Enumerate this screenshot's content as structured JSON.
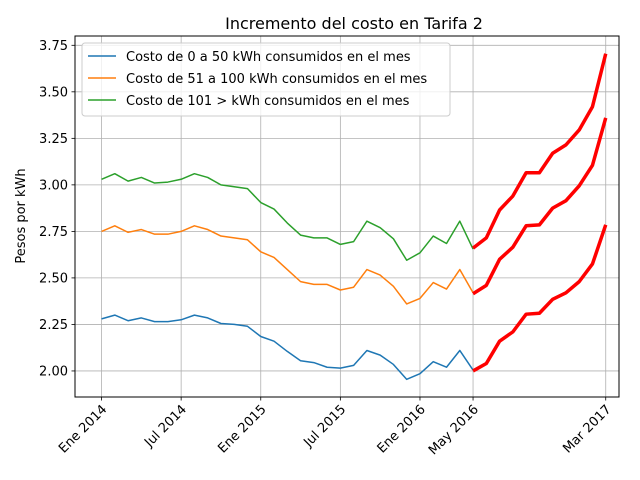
{
  "chart_data": {
    "type": "line",
    "title": "Incremento del costo en Tarifa 2",
    "xlabel": "",
    "ylabel": "Pesos por kWh",
    "ylim": [
      1.86,
      3.8
    ],
    "xlim": [
      "2013-11",
      "2017-04"
    ],
    "grid": true,
    "legend_position": "upper-left",
    "x_ticks": [
      {
        "date": "2014-01",
        "label": "Ene 2014"
      },
      {
        "date": "2014-07",
        "label": "Jul 2014"
      },
      {
        "date": "2015-01",
        "label": "Ene 2015"
      },
      {
        "date": "2015-07",
        "label": "Jul 2015"
      },
      {
        "date": "2016-01",
        "label": "Ene 2016"
      },
      {
        "date": "2016-05",
        "label": "May 2016"
      },
      {
        "date": "2017-03",
        "label": "Mar 2017"
      }
    ],
    "y_ticks": [
      {
        "value": 2.0,
        "label": "2.00"
      },
      {
        "value": 2.25,
        "label": "2.25"
      },
      {
        "value": 2.5,
        "label": "2.50"
      },
      {
        "value": 2.75,
        "label": "2.75"
      },
      {
        "value": 3.0,
        "label": "3.00"
      },
      {
        "value": 3.25,
        "label": "3.25"
      },
      {
        "value": 3.5,
        "label": "3.50"
      },
      {
        "value": 3.75,
        "label": "3.75"
      }
    ],
    "x": [
      "2014-01",
      "2014-02",
      "2014-03",
      "2014-04",
      "2014-05",
      "2014-06",
      "2014-07",
      "2014-08",
      "2014-09",
      "2014-10",
      "2014-11",
      "2014-12",
      "2015-01",
      "2015-02",
      "2015-03",
      "2015-04",
      "2015-05",
      "2015-06",
      "2015-07",
      "2015-08",
      "2015-09",
      "2015-10",
      "2015-11",
      "2015-12",
      "2016-01",
      "2016-02",
      "2016-03",
      "2016-04",
      "2016-05"
    ],
    "series": [
      {
        "name": "Costo de 0 a 50 kWh consumidos en el mes",
        "color": "#1f77b4",
        "values": [
          2.28,
          2.3,
          2.27,
          2.285,
          2.265,
          2.265,
          2.275,
          2.3,
          2.285,
          2.255,
          2.25,
          2.24,
          2.185,
          2.16,
          2.105,
          2.055,
          2.045,
          2.02,
          2.015,
          2.03,
          2.11,
          2.085,
          2.035,
          1.955,
          1.985,
          2.05,
          2.02,
          2.11,
          2.005
        ]
      },
      {
        "name": "Costo de 51 a 100 kWh consumidos en el mes",
        "color": "#ff7f0e",
        "values": [
          2.75,
          2.78,
          2.745,
          2.76,
          2.735,
          2.735,
          2.75,
          2.78,
          2.76,
          2.725,
          2.715,
          2.705,
          2.64,
          2.61,
          2.545,
          2.48,
          2.465,
          2.465,
          2.435,
          2.45,
          2.545,
          2.515,
          2.455,
          2.36,
          2.39,
          2.475,
          2.44,
          2.545,
          2.42
        ]
      },
      {
        "name": "Costo de 101 > kWh consumidos en el mes",
        "color": "#2ca02c",
        "values": [
          3.03,
          3.06,
          3.02,
          3.04,
          3.01,
          3.015,
          3.03,
          3.06,
          3.04,
          3.0,
          2.99,
          2.98,
          2.905,
          2.87,
          2.795,
          2.73,
          2.715,
          2.715,
          2.68,
          2.695,
          2.805,
          2.77,
          2.71,
          2.595,
          2.635,
          2.725,
          2.685,
          2.805,
          2.655
        ]
      }
    ],
    "projection": {
      "color": "#ff0000",
      "x": [
        "2016-05",
        "2016-06",
        "2016-07",
        "2016-08",
        "2016-09",
        "2016-10",
        "2016-11",
        "2016-12",
        "2017-01",
        "2017-02",
        "2017-03"
      ],
      "series": [
        {
          "values": [
            2.0,
            2.04,
            2.16,
            2.21,
            2.305,
            2.31,
            2.385,
            2.42,
            2.48,
            2.575,
            2.785
          ]
        },
        {
          "values": [
            2.415,
            2.46,
            2.6,
            2.665,
            2.78,
            2.785,
            2.875,
            2.915,
            2.995,
            3.105,
            3.36
          ]
        },
        {
          "values": [
            2.66,
            2.715,
            2.865,
            2.94,
            3.065,
            3.065,
            3.17,
            3.215,
            3.295,
            3.42,
            3.705
          ]
        }
      ]
    }
  }
}
